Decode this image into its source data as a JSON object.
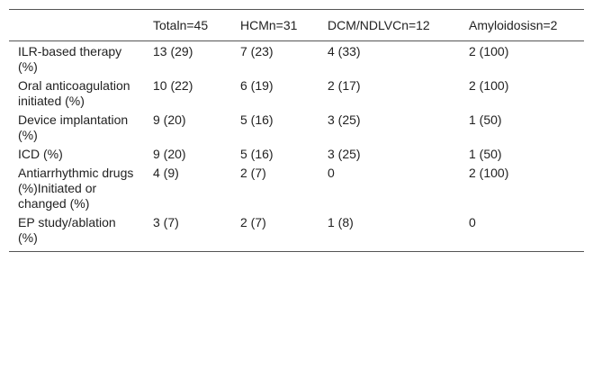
{
  "table": {
    "headers": [
      "",
      "Totaln=45",
      "HCMn=31",
      "DCM/NDLVCn=12",
      "Amyloidosisn=2"
    ],
    "rows": [
      {
        "label": "ILR-based therapy (%)",
        "cells": [
          "13 (29)",
          "7 (23)",
          "4 (33)",
          "2 (100)"
        ]
      },
      {
        "label": "Oral anticoagulation initiated (%)",
        "cells": [
          "10 (22)",
          "6 (19)",
          "2 (17)",
          "2 (100)"
        ]
      },
      {
        "label": "Device implantation (%)",
        "cells": [
          "9 (20)",
          "5 (16)",
          "3 (25)",
          "1 (50)"
        ]
      },
      {
        "label": "ICD (%)",
        "cells": [
          "9 (20)",
          "5 (16)",
          "3 (25)",
          "1 (50)"
        ]
      },
      {
        "label": "Antiarrhythmic drugs (%)Initiated or changed (%)",
        "cells": [
          "4 (9)",
          "2 (7)",
          "0",
          "2 (100)"
        ]
      },
      {
        "label": "EP study/ablation (%)",
        "cells": [
          "3 (7)",
          "2 (7)",
          "1 (8)",
          "0"
        ]
      }
    ]
  }
}
